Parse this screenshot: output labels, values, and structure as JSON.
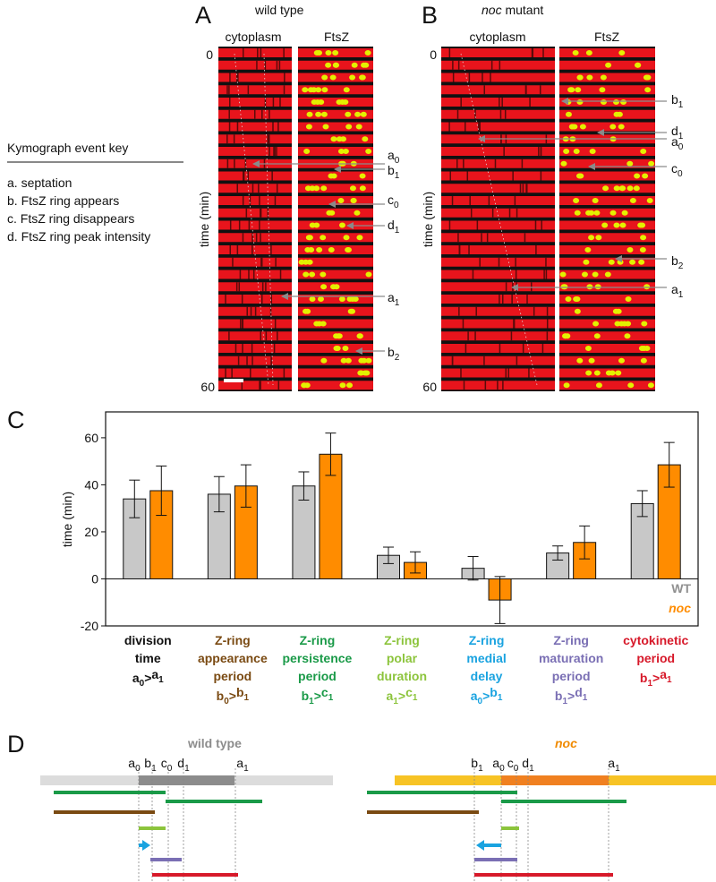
{
  "panel_a": {
    "letter": "A",
    "title": "wild type",
    "columns": [
      "cytoplasm",
      "FtsZ"
    ],
    "time_start": "0",
    "time_end": "60",
    "time_label": "time (min)",
    "events": [
      {
        "letter": "a",
        "sub": "0"
      },
      {
        "letter": "b",
        "sub": "1"
      },
      {
        "letter": "c",
        "sub": "0"
      },
      {
        "letter": "d",
        "sub": "1"
      },
      {
        "letter": "a",
        "sub": "1"
      },
      {
        "letter": "b",
        "sub": "2"
      }
    ]
  },
  "panel_b": {
    "letter": "B",
    "title": [
      "noc",
      " mutant"
    ],
    "columns": [
      "cytoplasm",
      "FtsZ"
    ],
    "time_start": "0",
    "time_end": "60",
    "time_label": "time (min)",
    "events": [
      {
        "letter": "b",
        "sub": "1"
      },
      {
        "letter": "d",
        "sub": "1"
      },
      {
        "letter": "a",
        "sub": "0"
      },
      {
        "letter": "c",
        "sub": "0"
      },
      {
        "letter": "b",
        "sub": "2"
      },
      {
        "letter": "a",
        "sub": "1"
      }
    ]
  },
  "event_key": {
    "title": "Kymograph event key",
    "items": [
      "a.  septation",
      "b.  FtsZ ring appears",
      "c.  FtsZ ring disappears",
      "d.  FtsZ ring peak intensity"
    ]
  },
  "chart_data": {
    "type": "bar",
    "panel_label": "C",
    "ylabel": "time (min)",
    "categories": [
      {
        "lines": [
          "division",
          "time"
        ],
        "formula": [
          "a",
          "0",
          ">",
          "a",
          "1"
        ],
        "color": "#111111"
      },
      {
        "lines": [
          "Z-ring",
          "appearance",
          "period"
        ],
        "formula": [
          "b",
          "0",
          ">",
          "b",
          "1"
        ],
        "color": "#7a4a12"
      },
      {
        "lines": [
          "Z-ring",
          "persistence",
          "period"
        ],
        "formula": [
          "b",
          "1",
          ">",
          "c",
          "1"
        ],
        "color": "#1a9a48"
      },
      {
        "lines": [
          "Z-ring",
          "polar",
          "duration"
        ],
        "formula": [
          "a",
          "1",
          ">",
          "c",
          "1"
        ],
        "color": "#8cc43c"
      },
      {
        "lines": [
          "Z-ring",
          "medial",
          "delay"
        ],
        "formula": [
          "a",
          "0",
          ">",
          "b",
          "1"
        ],
        "color": "#1aa3e0"
      },
      {
        "lines": [
          "Z-ring",
          "maturation",
          "period"
        ],
        "formula": [
          "b",
          "1",
          ">",
          "d",
          "1"
        ],
        "color": "#7a6fb4"
      },
      {
        "lines": [
          "cytokinetic",
          "period"
        ],
        "formula": [
          "b",
          "1",
          ">",
          "a",
          "1"
        ],
        "color": "#d7192a"
      }
    ],
    "series": [
      {
        "name": "WT",
        "color": "#c8c8c8",
        "label_color": "#909090",
        "values": [
          34,
          36,
          39.5,
          10,
          4.5,
          11,
          32
        ],
        "errors": [
          8,
          7.5,
          6,
          3.5,
          5,
          3,
          5.5
        ]
      },
      {
        "name": "noc",
        "color": "#ff8c00",
        "label_color": "#ff8c00",
        "values": [
          37.5,
          39.5,
          53,
          7,
          -9,
          15.5,
          48.5
        ],
        "errors": [
          10.5,
          9,
          9,
          4.5,
          10,
          7,
          9.5
        ]
      }
    ],
    "ylim": [
      -20,
      71
    ],
    "yticks": [
      -20,
      0,
      20,
      40,
      60
    ],
    "legend": "lower right"
  },
  "panel_d": {
    "letter": "D",
    "wild_type": {
      "title": "wild type",
      "ticks": [
        {
          "letter": "a",
          "sub": "0"
        },
        {
          "letter": "b",
          "sub": "1"
        },
        {
          "letter": "c",
          "sub": "0"
        },
        {
          "letter": "d",
          "sub": "1"
        },
        {
          "letter": "a",
          "sub": "1"
        }
      ]
    },
    "noc": {
      "title": "noc",
      "ticks": [
        {
          "letter": "b",
          "sub": "1"
        },
        {
          "letter": "a",
          "sub": "0"
        },
        {
          "letter": "c",
          "sub": "0"
        },
        {
          "letter": "d",
          "sub": "1"
        },
        {
          "letter": "a",
          "sub": "1"
        }
      ]
    }
  }
}
